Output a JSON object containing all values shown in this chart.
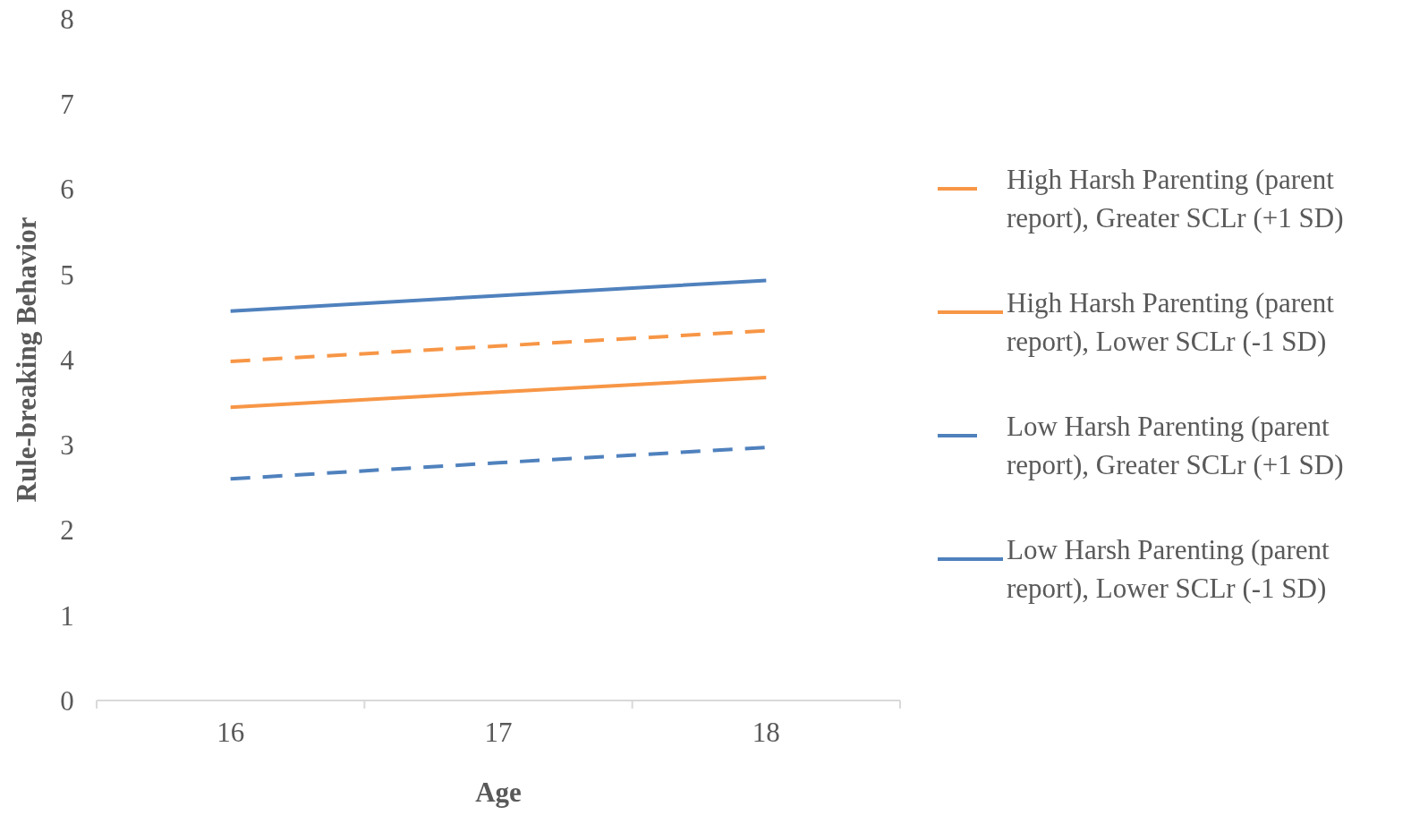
{
  "chart_data": {
    "type": "line",
    "xlabel": "Age",
    "ylabel": "Rule-breaking  Behavior",
    "categories": [
      "16",
      "17",
      "18"
    ],
    "ylim": [
      0,
      8
    ],
    "yticks": [
      0,
      1,
      2,
      3,
      4,
      5,
      6,
      7,
      8
    ],
    "grid": false,
    "legend": "right",
    "marker": "none",
    "series": [
      {
        "name": "High Harsh Parenting (parent report), Greater SCLr (+1 SD)",
        "color": "#f79646",
        "line_style": "dashed",
        "values": [
          3.98,
          4.16,
          4.34
        ]
      },
      {
        "name": "High Harsh Parenting (parent report), Lower SCLr (-1 SD)",
        "color": "#f79646",
        "line_style": "solid",
        "values": [
          3.44,
          3.62,
          3.79
        ]
      },
      {
        "name": "Low Harsh Parenting (parent report), Greater SCLr (+1 SD)",
        "color": "#4f81bd",
        "line_style": "dashed",
        "values": [
          2.6,
          2.79,
          2.97
        ]
      },
      {
        "name": "Low Harsh Parenting (parent report), Lower SCLr (-1 SD)",
        "color": "#4f81bd",
        "line_style": "solid",
        "values": [
          4.57,
          4.75,
          4.93
        ]
      }
    ]
  }
}
